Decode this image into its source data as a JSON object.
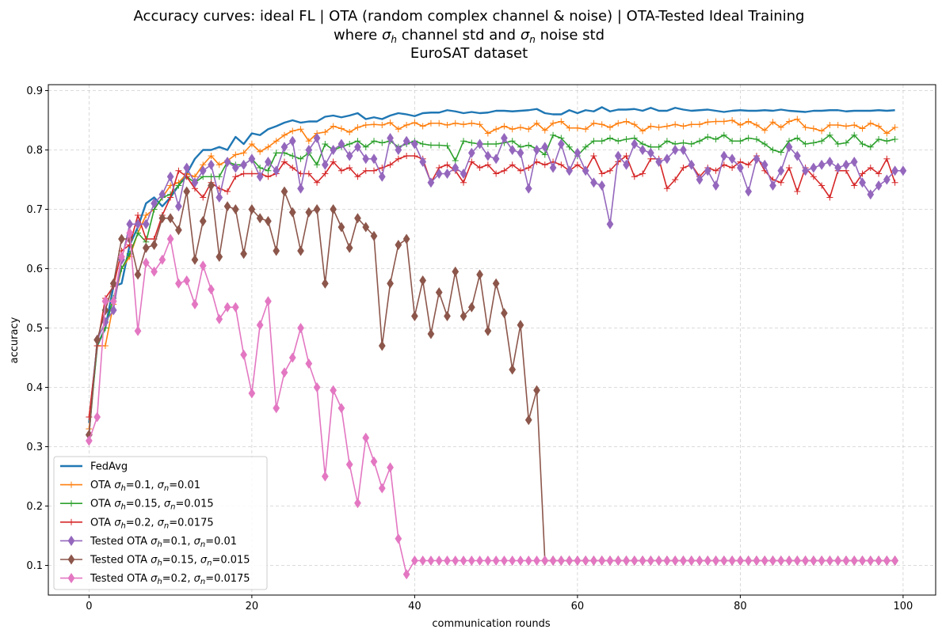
{
  "chart_data": {
    "type": "line",
    "title_lines": [
      "Accuracy curves: ideal FL | OTA (random complex channel & noise) | OTA-Tested Ideal Training",
      "where σ_h channel std and σ_n noise std",
      "EuroSAT dataset"
    ],
    "xlabel": "communication rounds",
    "ylabel": "accuracy",
    "xlim": [
      -5,
      104
    ],
    "ylim": [
      0.05,
      0.91
    ],
    "xticks": [
      0,
      20,
      40,
      60,
      80,
      100
    ],
    "yticks": [
      0.1,
      0.2,
      0.3,
      0.4,
      0.5,
      0.6,
      0.7,
      0.8,
      0.9
    ],
    "grid": true,
    "legend_position": "lower-left",
    "series": [
      {
        "name": "FedAvg",
        "color": "#1f77b4",
        "marker": "none",
        "width": 2.4,
        "values": [
          0.34,
          0.47,
          0.5,
          0.57,
          0.575,
          0.64,
          0.67,
          0.71,
          0.72,
          0.705,
          0.72,
          0.74,
          0.76,
          0.785,
          0.8,
          0.8,
          0.805,
          0.8,
          0.822,
          0.81,
          0.828,
          0.825,
          0.835,
          0.84,
          0.846,
          0.85,
          0.846,
          0.848,
          0.848,
          0.856,
          0.858,
          0.855,
          0.858,
          0.862,
          0.852,
          0.855,
          0.852,
          0.858,
          0.862,
          0.86,
          0.857,
          0.862,
          0.863,
          0.863,
          0.867,
          0.865,
          0.862,
          0.864,
          0.862,
          0.863,
          0.866,
          0.866,
          0.865,
          0.866,
          0.867,
          0.869,
          0.862,
          0.86,
          0.86,
          0.867,
          0.862,
          0.867,
          0.865,
          0.872,
          0.865,
          0.868,
          0.868,
          0.869,
          0.866,
          0.871,
          0.866,
          0.866,
          0.871,
          0.868,
          0.866,
          0.867,
          0.868,
          0.866,
          0.864,
          0.866,
          0.867,
          0.866,
          0.866,
          0.867,
          0.866,
          0.868,
          0.866,
          0.865,
          0.864,
          0.866,
          0.866,
          0.867,
          0.867,
          0.865,
          0.866,
          0.866,
          0.866,
          0.867,
          0.866,
          0.867
        ]
      },
      {
        "name": "OTA σh=0.1, σn=0.01",
        "label_parts": {
          "a": "0.1",
          "b": "0.01"
        },
        "color": "#ff7f0e",
        "marker": "plus",
        "width": 1.6,
        "values": [
          0.33,
          0.47,
          0.47,
          0.54,
          0.6,
          0.62,
          0.66,
          0.69,
          0.7,
          0.72,
          0.74,
          0.745,
          0.76,
          0.755,
          0.775,
          0.79,
          0.775,
          0.782,
          0.792,
          0.795,
          0.81,
          0.797,
          0.805,
          0.815,
          0.825,
          0.832,
          0.835,
          0.815,
          0.828,
          0.83,
          0.84,
          0.836,
          0.83,
          0.838,
          0.842,
          0.843,
          0.842,
          0.846,
          0.835,
          0.842,
          0.846,
          0.84,
          0.845,
          0.845,
          0.842,
          0.845,
          0.843,
          0.845,
          0.843,
          0.828,
          0.835,
          0.84,
          0.835,
          0.838,
          0.835,
          0.845,
          0.833,
          0.845,
          0.848,
          0.837,
          0.837,
          0.835,
          0.845,
          0.843,
          0.838,
          0.845,
          0.848,
          0.843,
          0.832,
          0.84,
          0.838,
          0.84,
          0.843,
          0.84,
          0.843,
          0.843,
          0.847,
          0.848,
          0.848,
          0.85,
          0.842,
          0.848,
          0.842,
          0.833,
          0.847,
          0.838,
          0.848,
          0.852,
          0.838,
          0.836,
          0.832,
          0.842,
          0.842,
          0.84,
          0.842,
          0.836,
          0.845,
          0.84,
          0.828,
          0.838
        ]
      },
      {
        "name": "OTA σh=0.15, σn=0.015",
        "label_parts": {
          "a": "0.15",
          "b": "0.015"
        },
        "color": "#2ca02c",
        "marker": "plus",
        "width": 1.6,
        "values": [
          0.32,
          0.47,
          0.5,
          0.55,
          0.6,
          0.625,
          0.66,
          0.645,
          0.7,
          0.72,
          0.725,
          0.74,
          0.755,
          0.745,
          0.755,
          0.755,
          0.755,
          0.78,
          0.775,
          0.775,
          0.785,
          0.77,
          0.765,
          0.795,
          0.795,
          0.79,
          0.785,
          0.795,
          0.775,
          0.81,
          0.8,
          0.805,
          0.81,
          0.815,
          0.805,
          0.815,
          0.812,
          0.815,
          0.805,
          0.81,
          0.815,
          0.81,
          0.808,
          0.808,
          0.807,
          0.782,
          0.815,
          0.812,
          0.81,
          0.81,
          0.81,
          0.812,
          0.815,
          0.805,
          0.808,
          0.802,
          0.792,
          0.825,
          0.82,
          0.805,
          0.79,
          0.805,
          0.815,
          0.815,
          0.82,
          0.815,
          0.818,
          0.82,
          0.81,
          0.805,
          0.805,
          0.815,
          0.81,
          0.812,
          0.81,
          0.815,
          0.822,
          0.818,
          0.825,
          0.815,
          0.815,
          0.82,
          0.818,
          0.81,
          0.8,
          0.796,
          0.815,
          0.82,
          0.81,
          0.812,
          0.815,
          0.825,
          0.81,
          0.812,
          0.825,
          0.81,
          0.805,
          0.818,
          0.815,
          0.818
        ]
      },
      {
        "name": "OTA σh=0.2, σn=0.0175",
        "label_parts": {
          "a": "0.2",
          "b": "0.0175"
        },
        "color": "#d62728",
        "marker": "plus",
        "width": 1.6,
        "values": [
          0.35,
          0.47,
          0.55,
          0.57,
          0.63,
          0.64,
          0.69,
          0.65,
          0.65,
          0.69,
          0.72,
          0.765,
          0.755,
          0.735,
          0.72,
          0.745,
          0.735,
          0.73,
          0.755,
          0.76,
          0.76,
          0.76,
          0.755,
          0.76,
          0.78,
          0.77,
          0.76,
          0.76,
          0.745,
          0.76,
          0.78,
          0.765,
          0.77,
          0.755,
          0.765,
          0.765,
          0.77,
          0.775,
          0.785,
          0.79,
          0.79,
          0.785,
          0.745,
          0.77,
          0.775,
          0.765,
          0.745,
          0.78,
          0.77,
          0.775,
          0.76,
          0.765,
          0.775,
          0.765,
          0.77,
          0.78,
          0.775,
          0.78,
          0.775,
          0.765,
          0.775,
          0.765,
          0.79,
          0.76,
          0.765,
          0.78,
          0.79,
          0.755,
          0.76,
          0.785,
          0.785,
          0.735,
          0.75,
          0.77,
          0.775,
          0.755,
          0.77,
          0.765,
          0.775,
          0.77,
          0.78,
          0.775,
          0.79,
          0.765,
          0.75,
          0.745,
          0.77,
          0.73,
          0.77,
          0.755,
          0.74,
          0.72,
          0.765,
          0.765,
          0.74,
          0.76,
          0.77,
          0.76,
          0.785,
          0.745
        ]
      },
      {
        "name": "Tested OTA σh=0.1, σn=0.01",
        "label_parts": {
          "a": "0.1",
          "b": "0.01"
        },
        "color": "#9467bd",
        "marker": "diamond",
        "width": 1.6,
        "values": [
          0.32,
          0.48,
          0.51,
          0.53,
          0.615,
          0.675,
          0.675,
          0.675,
          0.71,
          0.725,
          0.755,
          0.705,
          0.77,
          0.745,
          0.765,
          0.775,
          0.72,
          0.78,
          0.77,
          0.775,
          0.785,
          0.755,
          0.78,
          0.765,
          0.805,
          0.815,
          0.735,
          0.8,
          0.82,
          0.775,
          0.8,
          0.81,
          0.79,
          0.805,
          0.785,
          0.785,
          0.755,
          0.82,
          0.8,
          0.815,
          0.81,
          0.78,
          0.745,
          0.76,
          0.76,
          0.77,
          0.76,
          0.795,
          0.81,
          0.79,
          0.785,
          0.82,
          0.8,
          0.795,
          0.735,
          0.8,
          0.805,
          0.77,
          0.81,
          0.765,
          0.795,
          0.765,
          0.745,
          0.74,
          0.675,
          0.79,
          0.775,
          0.81,
          0.8,
          0.795,
          0.78,
          0.785,
          0.8,
          0.8,
          0.775,
          0.75,
          0.765,
          0.74,
          0.79,
          0.785,
          0.77,
          0.73,
          0.785,
          0.775,
          0.74,
          0.765,
          0.805,
          0.79,
          0.765,
          0.77,
          0.775,
          0.78,
          0.77,
          0.775,
          0.78,
          0.745,
          0.725,
          0.74,
          0.75,
          0.765,
          0.765
        ]
      },
      {
        "name": "Tested OTA σh=0.15, σn=0.015",
        "label_parts": {
          "a": "0.15",
          "b": "0.015"
        },
        "color": "#8c564b",
        "marker": "diamond",
        "width": 1.6,
        "values": [
          0.32,
          0.48,
          0.53,
          0.575,
          0.65,
          0.65,
          0.59,
          0.635,
          0.64,
          0.685,
          0.685,
          0.665,
          0.73,
          0.615,
          0.68,
          0.74,
          0.62,
          0.705,
          0.7,
          0.625,
          0.7,
          0.685,
          0.68,
          0.63,
          0.73,
          0.695,
          0.63,
          0.695,
          0.7,
          0.575,
          0.7,
          0.67,
          0.635,
          0.685,
          0.67,
          0.655,
          0.47,
          0.575,
          0.64,
          0.65,
          0.52,
          0.58,
          0.49,
          0.56,
          0.52,
          0.595,
          0.52,
          0.535,
          0.59,
          0.495,
          0.575,
          0.525,
          0.43,
          0.505,
          0.345,
          0.395,
          0.108,
          0.108,
          0.108,
          0.108,
          0.108,
          0.108,
          0.108,
          0.108,
          0.108,
          0.108,
          0.108,
          0.108,
          0.108,
          0.108,
          0.108,
          0.108,
          0.108,
          0.108,
          0.108,
          0.108,
          0.108,
          0.108,
          0.108,
          0.108,
          0.108,
          0.108,
          0.108,
          0.108,
          0.108,
          0.108,
          0.108,
          0.108,
          0.108,
          0.108,
          0.108,
          0.108,
          0.108,
          0.108,
          0.108,
          0.108,
          0.108,
          0.108,
          0.108,
          0.108
        ]
      },
      {
        "name": "Tested OTA σh=0.2, σn=0.0175",
        "label_parts": {
          "a": "0.2",
          "b": "0.0175"
        },
        "color": "#e377c2",
        "marker": "diamond",
        "width": 1.6,
        "values": [
          0.31,
          0.35,
          0.545,
          0.545,
          0.62,
          0.66,
          0.495,
          0.61,
          0.595,
          0.615,
          0.65,
          0.575,
          0.58,
          0.54,
          0.605,
          0.565,
          0.515,
          0.535,
          0.535,
          0.455,
          0.39,
          0.505,
          0.545,
          0.365,
          0.425,
          0.45,
          0.5,
          0.44,
          0.4,
          0.25,
          0.395,
          0.365,
          0.27,
          0.205,
          0.315,
          0.275,
          0.23,
          0.265,
          0.145,
          0.085,
          0.108,
          0.108,
          0.108,
          0.108,
          0.108,
          0.108,
          0.108,
          0.108,
          0.108,
          0.108,
          0.108,
          0.108,
          0.108,
          0.108,
          0.108,
          0.108,
          0.108,
          0.108,
          0.108,
          0.108,
          0.108,
          0.108,
          0.108,
          0.108,
          0.108,
          0.108,
          0.108,
          0.108,
          0.108,
          0.108,
          0.108,
          0.108,
          0.108,
          0.108,
          0.108,
          0.108,
          0.108,
          0.108,
          0.108,
          0.108,
          0.108,
          0.108,
          0.108,
          0.108,
          0.108,
          0.108,
          0.108,
          0.108,
          0.108,
          0.108,
          0.108,
          0.108,
          0.108,
          0.108,
          0.108,
          0.108,
          0.108,
          0.108,
          0.108,
          0.108
        ]
      }
    ]
  }
}
